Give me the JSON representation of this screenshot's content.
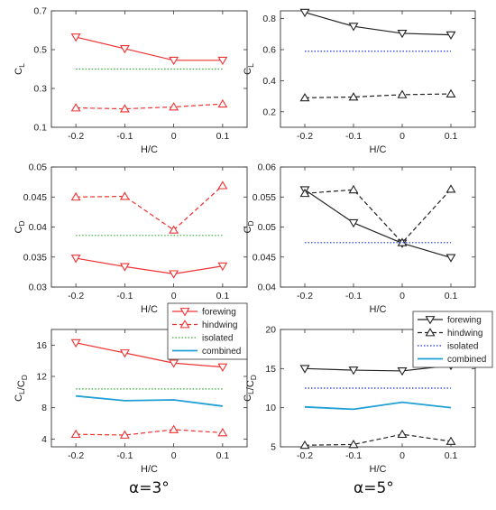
{
  "colors": {
    "red": "#ee3333",
    "green": "#33aa33",
    "blue": "#1e32e6",
    "cyan": "#1f9fd6",
    "black": "#222222"
  },
  "captions": [
    "α=3°",
    "α=5°"
  ],
  "legends": [
    {
      "entries": [
        {
          "label": "forewing",
          "color": "#ee3333",
          "dash": "solid",
          "marker": "tri-down"
        },
        {
          "label": "hindwing",
          "color": "#ee3333",
          "dash": "dashed",
          "marker": "tri-up"
        },
        {
          "label": "isolated",
          "color": "#33aa33",
          "dash": "dotted",
          "marker": "none"
        },
        {
          "label": "combined",
          "color": "#1f9fd6",
          "dash": "solid",
          "marker": "none"
        }
      ]
    },
    {
      "entries": [
        {
          "label": "forewing",
          "color": "#222222",
          "dash": "solid",
          "marker": "tri-down"
        },
        {
          "label": "hindwing",
          "color": "#222222",
          "dash": "dashed",
          "marker": "tri-up"
        },
        {
          "label": "isolated",
          "color": "#1e32e6",
          "dash": "dotted",
          "marker": "none"
        },
        {
          "label": "combined",
          "color": "#1f9fd6",
          "dash": "solid",
          "marker": "none"
        }
      ]
    }
  ],
  "chart_data": [
    {
      "type": "line",
      "xlabel": "H/C",
      "ylabel": "C_L",
      "x": [
        -0.2,
        -0.1,
        0,
        0.1
      ],
      "xlim": [
        -0.25,
        0.15
      ],
      "ylim": [
        0.1,
        0.7
      ],
      "xticks": [
        "-0.2",
        "-0.1",
        "0",
        "0.1"
      ],
      "yticks": [
        "0.1",
        "0.3",
        "0.5",
        "0.7"
      ],
      "series": [
        {
          "name": "forewing",
          "values": [
            0.565,
            0.505,
            0.445,
            0.445
          ],
          "color": "#ee3333",
          "dash": "solid",
          "marker": "tri-down"
        },
        {
          "name": "hindwing",
          "values": [
            0.2,
            0.195,
            0.205,
            0.22
          ],
          "color": "#ee3333",
          "dash": "dashed",
          "marker": "tri-up"
        },
        {
          "name": "isolated",
          "values": [
            0.4,
            0.4,
            0.4,
            0.4
          ],
          "color": "#33aa33",
          "dash": "dotted",
          "marker": "none"
        }
      ]
    },
    {
      "type": "line",
      "xlabel": "H/C",
      "ylabel": "C_L",
      "x": [
        -0.2,
        -0.1,
        0,
        0.1
      ],
      "xlim": [
        -0.25,
        0.15
      ],
      "ylim": [
        0.1,
        0.85
      ],
      "xticks": [
        "-0.2",
        "-0.1",
        "0",
        "0.1"
      ],
      "yticks": [
        "0.2",
        "0.4",
        "0.6",
        "0.8"
      ],
      "series": [
        {
          "name": "forewing",
          "values": [
            0.84,
            0.75,
            0.705,
            0.695
          ],
          "color": "#222222",
          "dash": "solid",
          "marker": "tri-down"
        },
        {
          "name": "hindwing",
          "values": [
            0.29,
            0.295,
            0.31,
            0.315
          ],
          "color": "#222222",
          "dash": "dashed",
          "marker": "tri-up"
        },
        {
          "name": "isolated",
          "values": [
            0.59,
            0.59,
            0.59,
            0.59
          ],
          "color": "#1e32e6",
          "dash": "dotted",
          "marker": "none"
        }
      ]
    },
    {
      "type": "line",
      "xlabel": "H/C",
      "ylabel": "C_D",
      "x": [
        -0.2,
        -0.1,
        0,
        0.1
      ],
      "xlim": [
        -0.25,
        0.15
      ],
      "ylim": [
        0.03,
        0.05
      ],
      "xticks": [
        "-0.2",
        "-0.1",
        "0",
        "0.1"
      ],
      "yticks": [
        "0.03",
        "0.035",
        "0.04",
        "0.045",
        "0.05"
      ],
      "series": [
        {
          "name": "forewing",
          "values": [
            0.0348,
            0.0334,
            0.0322,
            0.0335
          ],
          "color": "#ee3333",
          "dash": "solid",
          "marker": "tri-down"
        },
        {
          "name": "hindwing",
          "values": [
            0.045,
            0.0451,
            0.0395,
            0.0469
          ],
          "color": "#ee3333",
          "dash": "dashed",
          "marker": "tri-up"
        },
        {
          "name": "isolated",
          "values": [
            0.0386,
            0.0386,
            0.0386,
            0.0386
          ],
          "color": "#33aa33",
          "dash": "dotted",
          "marker": "none"
        }
      ]
    },
    {
      "type": "line",
      "xlabel": "H/C",
      "ylabel": "C_D",
      "x": [
        -0.2,
        -0.1,
        0,
        0.1
      ],
      "xlim": [
        -0.25,
        0.15
      ],
      "ylim": [
        0.04,
        0.06
      ],
      "xticks": [
        "-0.2",
        "-0.1",
        "0",
        "0.1"
      ],
      "yticks": [
        "0.04",
        "0.045",
        "0.05",
        "0.055",
        "0.06"
      ],
      "series": [
        {
          "name": "forewing",
          "values": [
            0.0562,
            0.0507,
            0.0473,
            0.0449
          ],
          "color": "#222222",
          "dash": "solid",
          "marker": "tri-down"
        },
        {
          "name": "hindwing",
          "values": [
            0.0556,
            0.0562,
            0.0474,
            0.0563
          ],
          "color": "#222222",
          "dash": "dashed",
          "marker": "tri-up"
        },
        {
          "name": "isolated",
          "values": [
            0.0474,
            0.0474,
            0.0474,
            0.0474
          ],
          "color": "#1e32e6",
          "dash": "dotted",
          "marker": "none"
        }
      ]
    },
    {
      "type": "line",
      "xlabel": "H/C",
      "ylabel": "C_L/C_D",
      "x": [
        -0.2,
        -0.1,
        0,
        0.1
      ],
      "xlim": [
        -0.25,
        0.15
      ],
      "ylim": [
        3,
        18
      ],
      "xticks": [
        "-0.2",
        "-0.1",
        "0",
        "0.1"
      ],
      "yticks": [
        "4",
        "8",
        "12",
        "16"
      ],
      "series": [
        {
          "name": "forewing",
          "values": [
            16.3,
            15.0,
            13.7,
            13.2
          ],
          "color": "#ee3333",
          "dash": "solid",
          "marker": "tri-down"
        },
        {
          "name": "hindwing",
          "values": [
            4.6,
            4.5,
            5.2,
            4.8
          ],
          "color": "#ee3333",
          "dash": "dashed",
          "marker": "tri-up"
        },
        {
          "name": "isolated",
          "values": [
            10.4,
            10.4,
            10.4,
            10.4
          ],
          "color": "#33aa33",
          "dash": "dotted",
          "marker": "none"
        },
        {
          "name": "combined",
          "values": [
            9.5,
            8.9,
            9.0,
            8.2
          ],
          "color": "#1f9fd6",
          "dash": "solid",
          "marker": "none"
        }
      ]
    },
    {
      "type": "line",
      "xlabel": "H/C",
      "ylabel": "C_L/C_D",
      "x": [
        -0.2,
        -0.1,
        0,
        0.1
      ],
      "xlim": [
        -0.25,
        0.15
      ],
      "ylim": [
        5,
        20
      ],
      "xticks": [
        "-0.2",
        "-0.1",
        "0",
        "0.1"
      ],
      "yticks": [
        "5",
        "10",
        "15",
        "20"
      ],
      "series": [
        {
          "name": "forewing",
          "values": [
            15.0,
            14.8,
            14.7,
            15.4
          ],
          "color": "#222222",
          "dash": "solid",
          "marker": "tri-down"
        },
        {
          "name": "hindwing",
          "values": [
            5.2,
            5.3,
            6.6,
            5.7
          ],
          "color": "#222222",
          "dash": "dashed",
          "marker": "tri-up"
        },
        {
          "name": "isolated",
          "values": [
            12.5,
            12.5,
            12.5,
            12.5
          ],
          "color": "#1e32e6",
          "dash": "dotted",
          "marker": "none"
        },
        {
          "name": "combined",
          "values": [
            10.1,
            9.8,
            10.7,
            10.0
          ],
          "color": "#1f9fd6",
          "dash": "solid",
          "marker": "none"
        }
      ]
    }
  ]
}
